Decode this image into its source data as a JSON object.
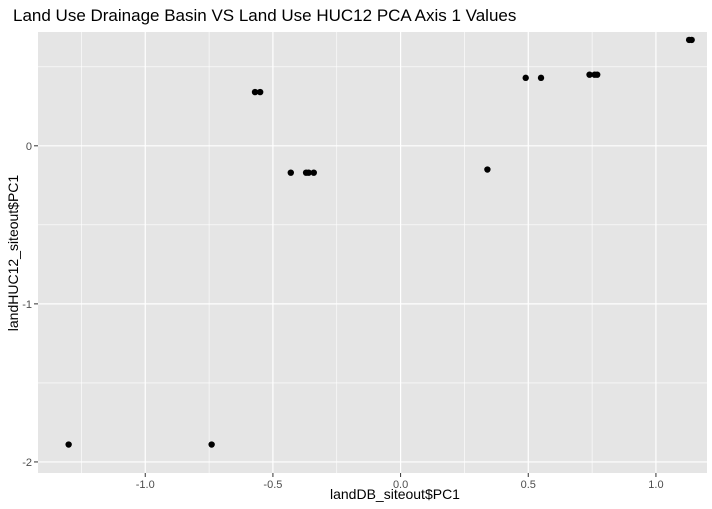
{
  "chart_data": {
    "type": "scatter",
    "title": "Land Use Drainage Basin VS Land Use HUC12 PCA Axis 1 Values",
    "xlabel": "landDB_siteout$PC1",
    "ylabel": "landHUC12_siteout$PC1",
    "xlim": [
      -1.42,
      1.2
    ],
    "ylim": [
      -2.07,
      0.72
    ],
    "x_ticks": [
      -1.0,
      -0.5,
      0.0,
      0.5,
      1.0
    ],
    "x_tick_labels": [
      "-1.0",
      "-0.5",
      "0.0",
      "0.5",
      "1.0"
    ],
    "y_ticks": [
      -2,
      -1,
      0
    ],
    "y_tick_labels": [
      "-2",
      "-1",
      "0"
    ],
    "grid": true,
    "background": "#e5e5e5",
    "grid_color": "#ffffff",
    "point_color": "#000000",
    "points": [
      {
        "x": -1.3,
        "y": -1.89
      },
      {
        "x": -0.74,
        "y": -1.89
      },
      {
        "x": -0.57,
        "y": 0.34
      },
      {
        "x": -0.55,
        "y": 0.34
      },
      {
        "x": -0.43,
        "y": -0.17
      },
      {
        "x": -0.37,
        "y": -0.17
      },
      {
        "x": -0.36,
        "y": -0.17
      },
      {
        "x": -0.34,
        "y": -0.17
      },
      {
        "x": 0.34,
        "y": -0.15
      },
      {
        "x": 0.49,
        "y": 0.43
      },
      {
        "x": 0.55,
        "y": 0.43
      },
      {
        "x": 0.74,
        "y": 0.45
      },
      {
        "x": 0.76,
        "y": 0.45
      },
      {
        "x": 0.77,
        "y": 0.45
      },
      {
        "x": 1.13,
        "y": 0.67
      },
      {
        "x": 1.14,
        "y": 0.67
      }
    ]
  }
}
